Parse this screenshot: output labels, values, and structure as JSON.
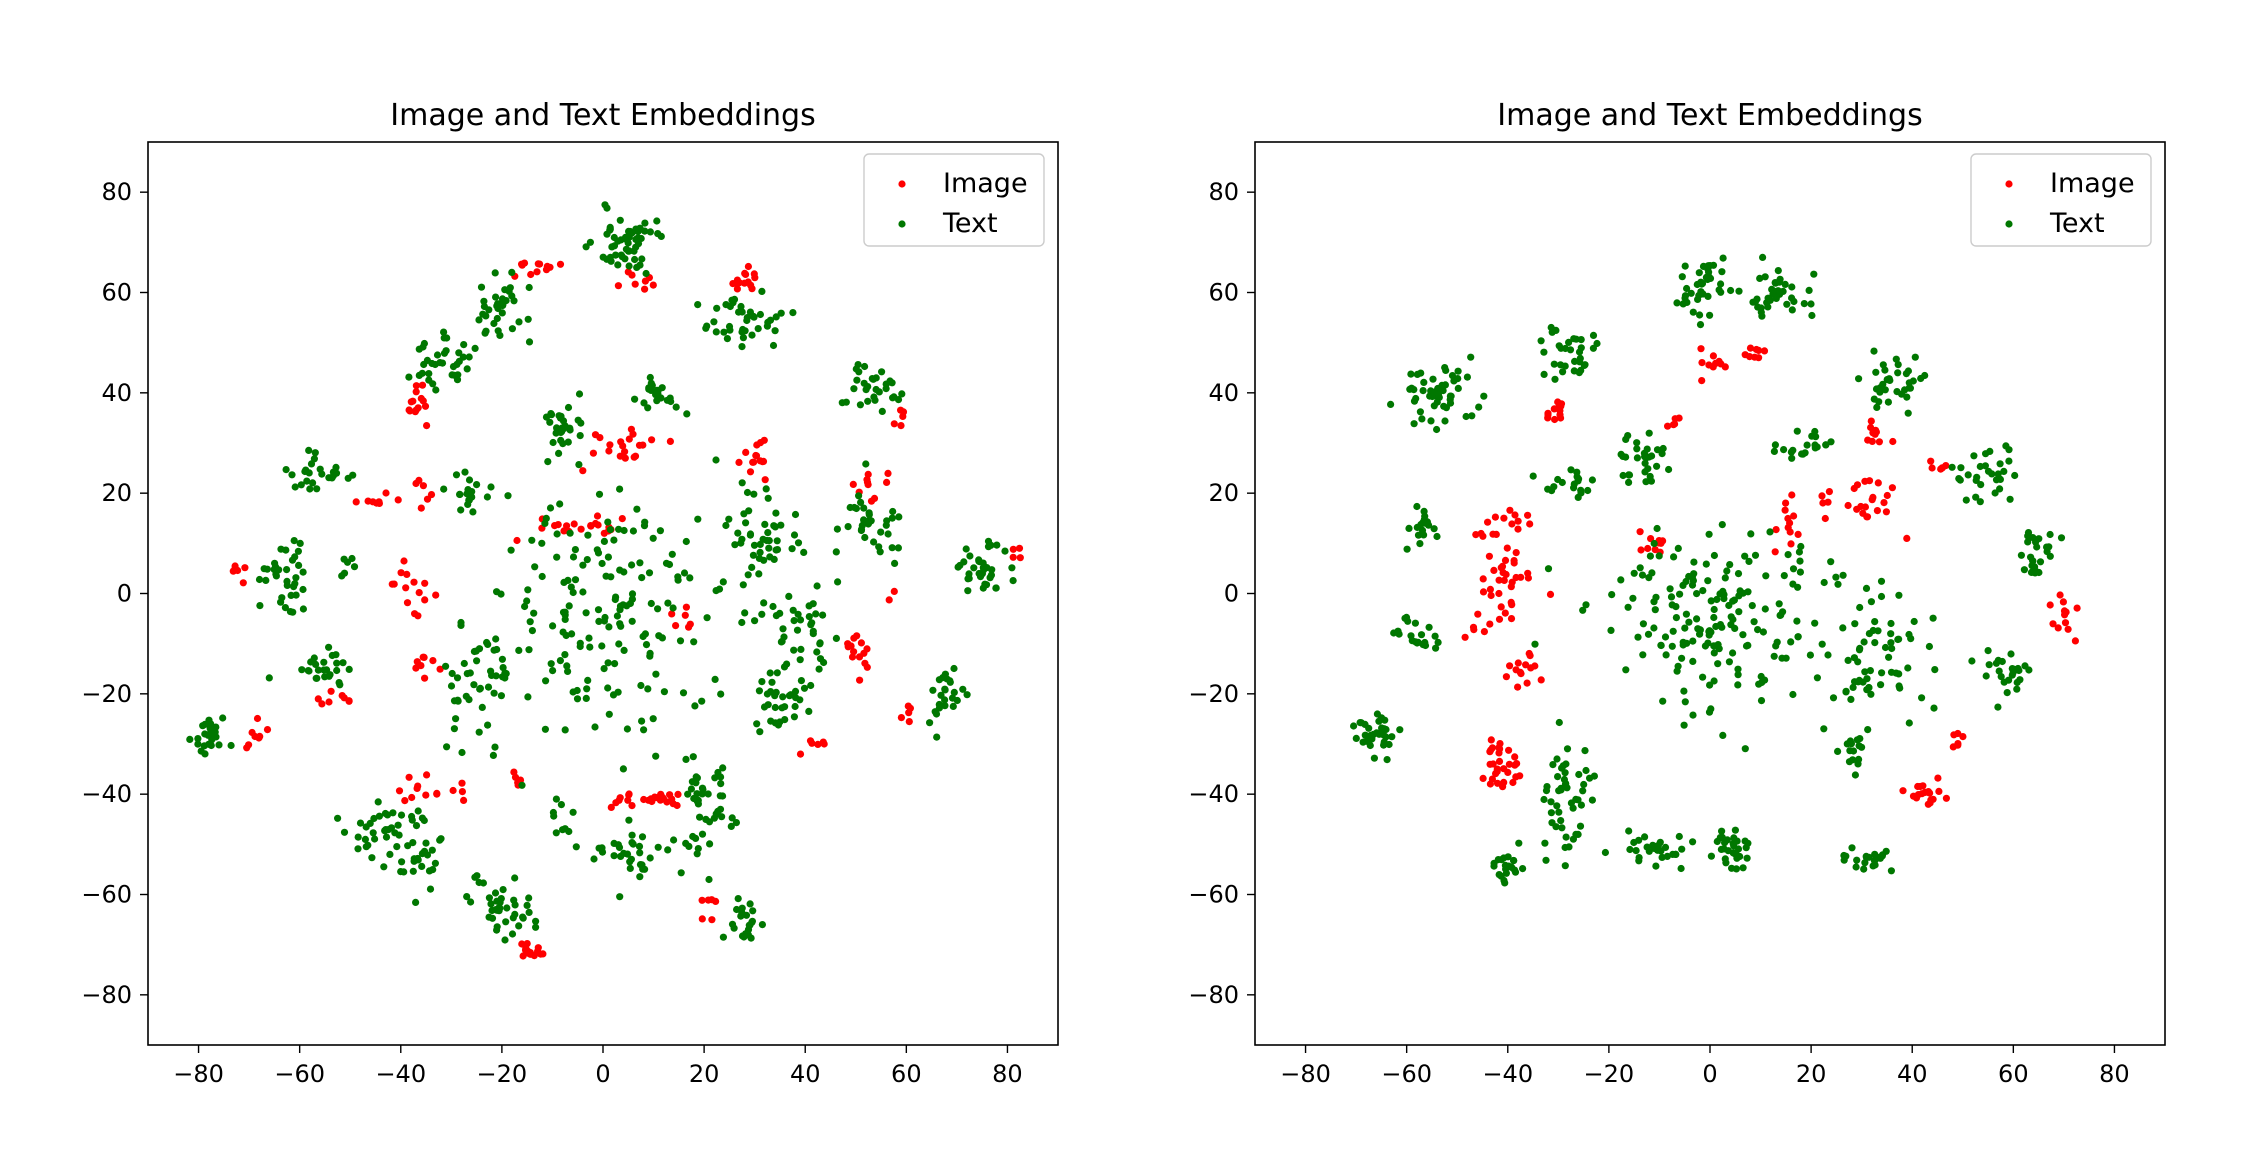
{
  "chart_data": [
    {
      "type": "scatter",
      "title": "Image and Text Embeddings",
      "xlim": [
        -90,
        90
      ],
      "ylim": [
        -90,
        90
      ],
      "xticks": [
        "−80",
        "−60",
        "−40",
        "−20",
        "0",
        "20",
        "40",
        "60",
        "80"
      ],
      "yticks": [
        "80",
        "60",
        "40",
        "20",
        "0",
        "−20",
        "−40",
        "−60",
        "−80"
      ],
      "legend_position": "top-right",
      "series": [
        {
          "name": "Image",
          "color": "#ff0000",
          "clusters": [
            {
              "x": -14,
              "y": 65,
              "sx": 3,
              "sy": 1,
              "n": 12
            },
            {
              "x": 7,
              "y": 62,
              "sx": 3,
              "sy": 1.2,
              "n": 8
            },
            {
              "x": 28,
              "y": 62,
              "sx": 1.6,
              "sy": 1.3,
              "n": 14
            },
            {
              "x": -37,
              "y": 38,
              "sx": 1.6,
              "sy": 2,
              "n": 14
            },
            {
              "x": 4,
              "y": 30,
              "sx": 4,
              "sy": 2,
              "n": 20
            },
            {
              "x": 31,
              "y": 28,
              "sx": 2,
              "sy": 2,
              "n": 14
            },
            {
              "x": 59,
              "y": 35,
              "sx": 1,
              "sy": 1.2,
              "n": 5
            },
            {
              "x": 53,
              "y": 22,
              "sx": 2.5,
              "sy": 1.5,
              "n": 10
            },
            {
              "x": -44,
              "y": 18,
              "sx": 2,
              "sy": 1,
              "n": 8
            },
            {
              "x": -35,
              "y": 21,
              "sx": 1,
              "sy": 2,
              "n": 6
            },
            {
              "x": -4,
              "y": 13,
              "sx": 5,
              "sy": 1.2,
              "n": 20
            },
            {
              "x": -72,
              "y": 5,
              "sx": 1,
              "sy": 1.5,
              "n": 6
            },
            {
              "x": -38,
              "y": 1,
              "sx": 2.5,
              "sy": 2,
              "n": 14
            },
            {
              "x": 16,
              "y": -4,
              "sx": 1.5,
              "sy": 1,
              "n": 6
            },
            {
              "x": 49,
              "y": -11,
              "sx": 2,
              "sy": 2,
              "n": 14
            },
            {
              "x": 57,
              "y": -1,
              "sx": 0.6,
              "sy": 0.6,
              "n": 2
            },
            {
              "x": -35,
              "y": -15,
              "sx": 1.3,
              "sy": 1.5,
              "n": 8
            },
            {
              "x": -53,
              "y": -21,
              "sx": 1.5,
              "sy": 1,
              "n": 8
            },
            {
              "x": 60,
              "y": -25,
              "sx": 1,
              "sy": 1,
              "n": 5
            },
            {
              "x": -69,
              "y": -28,
              "sx": 1.2,
              "sy": 1.5,
              "n": 8
            },
            {
              "x": 42,
              "y": -30,
              "sx": 1.5,
              "sy": 0.7,
              "n": 6
            },
            {
              "x": -36,
              "y": -40,
              "sx": 3,
              "sy": 1.5,
              "n": 10
            },
            {
              "x": -28,
              "y": -40,
              "sx": 1.5,
              "sy": 1,
              "n": 4
            },
            {
              "x": -17,
              "y": -37,
              "sx": 1,
              "sy": 1.5,
              "n": 5
            },
            {
              "x": 8,
              "y": -41,
              "sx": 5,
              "sy": 0.8,
              "n": 24
            },
            {
              "x": -14,
              "y": -72,
              "sx": 1.5,
              "sy": 1,
              "n": 14
            },
            {
              "x": 21,
              "y": -63,
              "sx": 0.8,
              "sy": 1.5,
              "n": 6
            },
            {
              "x": 82,
              "y": 8,
              "sx": 0.6,
              "sy": 0.6,
              "n": 4
            }
          ]
        },
        {
          "name": "Text",
          "color": "#007700",
          "clusters": [
            {
              "x": 5,
              "y": 70,
              "sx": 3.5,
              "sy": 3.5,
              "n": 55
            },
            {
              "x": -20,
              "y": 56,
              "sx": 3,
              "sy": 3,
              "n": 35
            },
            {
              "x": 28,
              "y": 54,
              "sx": 4,
              "sy": 3,
              "n": 40
            },
            {
              "x": -31,
              "y": 46,
              "sx": 3,
              "sy": 3,
              "n": 35
            },
            {
              "x": 12,
              "y": 40,
              "sx": 2.5,
              "sy": 1.8,
              "n": 22
            },
            {
              "x": 53,
              "y": 41,
              "sx": 2.5,
              "sy": 2.5,
              "n": 30
            },
            {
              "x": -8,
              "y": 33,
              "sx": 2,
              "sy": 3.5,
              "n": 30
            },
            {
              "x": -56,
              "y": 24,
              "sx": 3,
              "sy": 2,
              "n": 25
            },
            {
              "x": -27,
              "y": 20,
              "sx": 2,
              "sy": 2,
              "n": 18
            },
            {
              "x": 32,
              "y": 11,
              "sx": 3.5,
              "sy": 5,
              "n": 45
            },
            {
              "x": 52,
              "y": 13,
              "sx": 3.5,
              "sy": 4,
              "n": 35
            },
            {
              "x": -63,
              "y": 2,
              "sx": 2.5,
              "sy": 4,
              "n": 35
            },
            {
              "x": -51,
              "y": 5,
              "sx": 1,
              "sy": 1,
              "n": 6
            },
            {
              "x": 75,
              "y": 5,
              "sx": 3,
              "sy": 3,
              "n": 35
            },
            {
              "x": 2,
              "y": -3,
              "sx": 11,
              "sy": 12,
              "n": 170
            },
            {
              "x": -25,
              "y": -18,
              "sx": 4,
              "sy": 6,
              "n": 45
            },
            {
              "x": -55,
              "y": -15,
              "sx": 2.5,
              "sy": 2,
              "n": 25
            },
            {
              "x": 40,
              "y": -9,
              "sx": 4,
              "sy": 5,
              "n": 40
            },
            {
              "x": 35,
              "y": -22,
              "sx": 3.5,
              "sy": 2.5,
              "n": 30
            },
            {
              "x": 67,
              "y": -20,
              "sx": 2,
              "sy": 3,
              "n": 25
            },
            {
              "x": -78,
              "y": -28,
              "sx": 2,
              "sy": 2,
              "n": 25
            },
            {
              "x": -45,
              "y": -48,
              "sx": 3,
              "sy": 3,
              "n": 30
            },
            {
              "x": -36,
              "y": -52,
              "sx": 3,
              "sy": 4,
              "n": 30
            },
            {
              "x": -22,
              "y": -63,
              "sx": 3.5,
              "sy": 3.5,
              "n": 40
            },
            {
              "x": 6,
              "y": -52,
              "sx": 3.5,
              "sy": 3,
              "n": 30
            },
            {
              "x": 20,
              "y": -45,
              "sx": 3,
              "sy": 6,
              "n": 45
            },
            {
              "x": 28,
              "y": -66,
              "sx": 2,
              "sy": 2.5,
              "n": 22
            },
            {
              "x": -8,
              "y": -46,
              "sx": 2,
              "sy": 2,
              "n": 10
            }
          ]
        }
      ]
    },
    {
      "type": "scatter",
      "title": "Image and Text Embeddings",
      "xlim": [
        -90,
        90
      ],
      "ylim": [
        -90,
        90
      ],
      "xticks": [
        "−80",
        "−60",
        "−40",
        "−20",
        "0",
        "20",
        "40",
        "60",
        "80"
      ],
      "yticks": [
        "80",
        "60",
        "40",
        "20",
        "0",
        "−20",
        "−40",
        "−60",
        "−80"
      ],
      "legend_position": "top-right",
      "series": [
        {
          "name": "Image",
          "color": "#ff0000",
          "clusters": [
            {
              "x": 0,
              "y": 46,
              "sx": 1.5,
              "sy": 1.5,
              "n": 10
            },
            {
              "x": 9,
              "y": 48,
              "sx": 1,
              "sy": 1.2,
              "n": 8
            },
            {
              "x": -30,
              "y": 36,
              "sx": 1.3,
              "sy": 1.3,
              "n": 12
            },
            {
              "x": -7,
              "y": 34,
              "sx": 0.8,
              "sy": 0.8,
              "n": 5
            },
            {
              "x": 33,
              "y": 31,
              "sx": 1.3,
              "sy": 1.5,
              "n": 10
            },
            {
              "x": 45,
              "y": 25,
              "sx": 1,
              "sy": 1,
              "n": 6
            },
            {
              "x": -40,
              "y": 14,
              "sx": 2.5,
              "sy": 1.5,
              "n": 12
            },
            {
              "x": 29,
              "y": 18,
              "sx": 4.5,
              "sy": 2.5,
              "n": 25
            },
            {
              "x": 16,
              "y": 15,
              "sx": 1.5,
              "sy": 3,
              "n": 12
            },
            {
              "x": -40,
              "y": 3,
              "sx": 3,
              "sy": 4,
              "n": 35
            },
            {
              "x": -10,
              "y": 10,
              "sx": 1.5,
              "sy": 1.2,
              "n": 10
            },
            {
              "x": -47,
              "y": -7,
              "sx": 1,
              "sy": 0.8,
              "n": 5
            },
            {
              "x": 70,
              "y": -3,
              "sx": 1,
              "sy": 3,
              "n": 12
            },
            {
              "x": -37,
              "y": -15,
              "sx": 2,
              "sy": 2,
              "n": 14
            },
            {
              "x": -41,
              "y": -33,
              "sx": 1.8,
              "sy": 3,
              "n": 30
            },
            {
              "x": 42,
              "y": -40,
              "sx": 2.5,
              "sy": 1.3,
              "n": 18
            },
            {
              "x": 49,
              "y": -30,
              "sx": 0.8,
              "sy": 1,
              "n": 6
            }
          ]
        },
        {
          "name": "Text",
          "color": "#007700",
          "clusters": [
            {
              "x": -1,
              "y": 62,
              "sx": 2.5,
              "sy": 3,
              "n": 40
            },
            {
              "x": 12,
              "y": 60,
              "sx": 3,
              "sy": 2.5,
              "n": 40
            },
            {
              "x": -27,
              "y": 48,
              "sx": 2.5,
              "sy": 3,
              "n": 32
            },
            {
              "x": -54,
              "y": 40,
              "sx": 3.5,
              "sy": 3.5,
              "n": 50
            },
            {
              "x": 36,
              "y": 42,
              "sx": 3,
              "sy": 3,
              "n": 35
            },
            {
              "x": 19,
              "y": 30,
              "sx": 2.5,
              "sy": 1.5,
              "n": 20
            },
            {
              "x": -13,
              "y": 27,
              "sx": 3,
              "sy": 2.5,
              "n": 30
            },
            {
              "x": -28,
              "y": 21,
              "sx": 2.5,
              "sy": 1.5,
              "n": 18
            },
            {
              "x": 54,
              "y": 24,
              "sx": 3,
              "sy": 3,
              "n": 30
            },
            {
              "x": -57,
              "y": 13,
              "sx": 1.5,
              "sy": 3,
              "n": 18
            },
            {
              "x": 65,
              "y": 8,
              "sx": 2,
              "sy": 3,
              "n": 25
            },
            {
              "x": 2,
              "y": -5,
              "sx": 12,
              "sy": 10,
              "n": 180
            },
            {
              "x": 34,
              "y": -13,
              "sx": 5,
              "sy": 7,
              "n": 60
            },
            {
              "x": -57,
              "y": -8,
              "sx": 2,
              "sy": 2,
              "n": 20
            },
            {
              "x": 59,
              "y": -15,
              "sx": 3,
              "sy": 2.5,
              "n": 25
            },
            {
              "x": -66,
              "y": -28,
              "sx": 2.5,
              "sy": 2.5,
              "n": 35
            },
            {
              "x": 28,
              "y": -32,
              "sx": 1.5,
              "sy": 2.5,
              "n": 15
            },
            {
              "x": -28,
              "y": -40,
              "sx": 2.5,
              "sy": 6,
              "n": 50
            },
            {
              "x": -11,
              "y": -51,
              "sx": 3.5,
              "sy": 1.5,
              "n": 30
            },
            {
              "x": 4,
              "y": -51,
              "sx": 2,
              "sy": 2.5,
              "n": 30
            },
            {
              "x": 31,
              "y": -53,
              "sx": 2.5,
              "sy": 1.2,
              "n": 22
            },
            {
              "x": -40,
              "y": -54,
              "sx": 1.5,
              "sy": 2,
              "n": 22
            }
          ]
        }
      ]
    }
  ]
}
